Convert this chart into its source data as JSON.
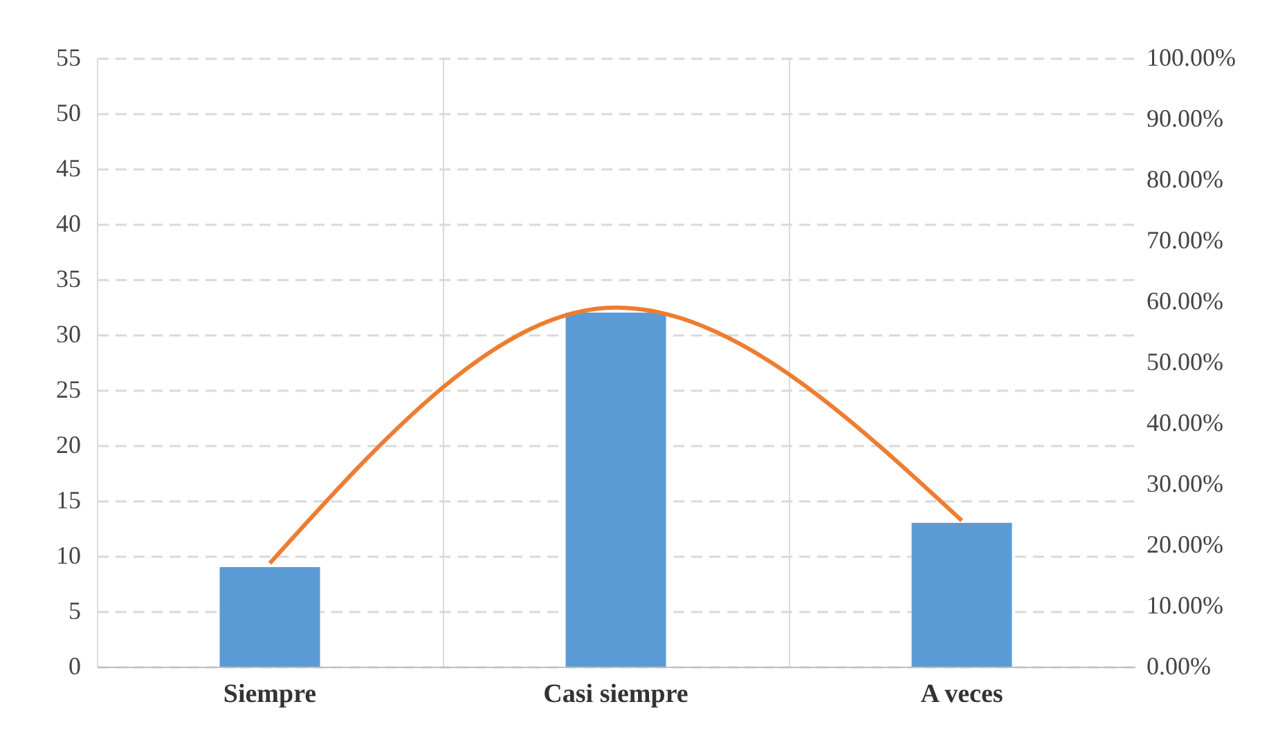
{
  "chart_data": {
    "type": "bar",
    "categories": [
      "Siempre",
      "Casi siempre",
      "A veces"
    ],
    "series": [
      {
        "color": "#5b9bd5",
        "values": [
          9,
          32,
          13
        ]
      },
      {
        "type": "line",
        "axis": "y2",
        "color": "#ed7d31",
        "values": [
          17,
          59,
          24
        ]
      }
    ],
    "ylim": [
      0,
      55
    ],
    "yticks": [
      0,
      5,
      10,
      15,
      20,
      25,
      30,
      35,
      40,
      45,
      50,
      55
    ],
    "y2lim": [
      0,
      100
    ],
    "y2ticks": [
      {
        "value": 0,
        "label": "0.00%"
      },
      {
        "value": 10,
        "label": "10.00%"
      },
      {
        "value": 20,
        "label": "20.00%"
      },
      {
        "value": 30,
        "label": "30.00%"
      },
      {
        "value": 40,
        "label": "40.00%"
      },
      {
        "value": 50,
        "label": "50.00%"
      },
      {
        "value": 60,
        "label": "60.00%"
      },
      {
        "value": 70,
        "label": "70.00%"
      },
      {
        "value": 80,
        "label": "80.00%"
      },
      {
        "value": 90,
        "label": "90.00%"
      },
      {
        "value": 100,
        "label": "100.00%"
      }
    ],
    "grid": true,
    "line_style": "solid",
    "marker": "none"
  }
}
